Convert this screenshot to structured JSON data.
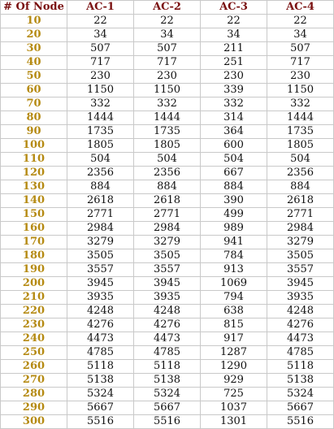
{
  "table": {
    "headers": [
      "# Of Node",
      "AC-1",
      "AC-2",
      "AC-3",
      "AC-4"
    ],
    "rows": [
      [
        "10",
        "22",
        "22",
        "22",
        "22"
      ],
      [
        "20",
        "34",
        "34",
        "34",
        "34"
      ],
      [
        "30",
        "507",
        "507",
        "211",
        "507"
      ],
      [
        "40",
        "717",
        "717",
        "251",
        "717"
      ],
      [
        "50",
        "230",
        "230",
        "230",
        "230"
      ],
      [
        "60",
        "1150",
        "1150",
        "339",
        "1150"
      ],
      [
        "70",
        "332",
        "332",
        "332",
        "332"
      ],
      [
        "80",
        "1444",
        "1444",
        "314",
        "1444"
      ],
      [
        "90",
        "1735",
        "1735",
        "364",
        "1735"
      ],
      [
        "100",
        "1805",
        "1805",
        "600",
        "1805"
      ],
      [
        "110",
        "504",
        "504",
        "504",
        "504"
      ],
      [
        "120",
        "2356",
        "2356",
        "667",
        "2356"
      ],
      [
        "130",
        "884",
        "884",
        "884",
        "884"
      ],
      [
        "140",
        "2618",
        "2618",
        "390",
        "2618"
      ],
      [
        "150",
        "2771",
        "2771",
        "499",
        "2771"
      ],
      [
        "160",
        "2984",
        "2984",
        "989",
        "2984"
      ],
      [
        "170",
        "3279",
        "3279",
        "941",
        "3279"
      ],
      [
        "180",
        "3505",
        "3505",
        "784",
        "3505"
      ],
      [
        "190",
        "3557",
        "3557",
        "913",
        "3557"
      ],
      [
        "200",
        "3945",
        "3945",
        "1069",
        "3945"
      ],
      [
        "210",
        "3935",
        "3935",
        "794",
        "3935"
      ],
      [
        "220",
        "4248",
        "4248",
        "638",
        "4248"
      ],
      [
        "230",
        "4276",
        "4276",
        "815",
        "4276"
      ],
      [
        "240",
        "4473",
        "4473",
        "917",
        "4473"
      ],
      [
        "250",
        "4785",
        "4785",
        "1287",
        "4785"
      ],
      [
        "260",
        "5118",
        "5118",
        "1290",
        "5118"
      ],
      [
        "270",
        "5138",
        "5138",
        "929",
        "5138"
      ],
      [
        "280",
        "5324",
        "5324",
        "725",
        "5324"
      ],
      [
        "290",
        "5667",
        "5667",
        "1037",
        "5667"
      ],
      [
        "300",
        "5516",
        "5516",
        "1301",
        "5516"
      ]
    ]
  },
  "colors": {
    "header_text": "#7a1010",
    "node_text": "#b58a12",
    "cell_text": "#111111",
    "border": "#c9c9c9"
  }
}
